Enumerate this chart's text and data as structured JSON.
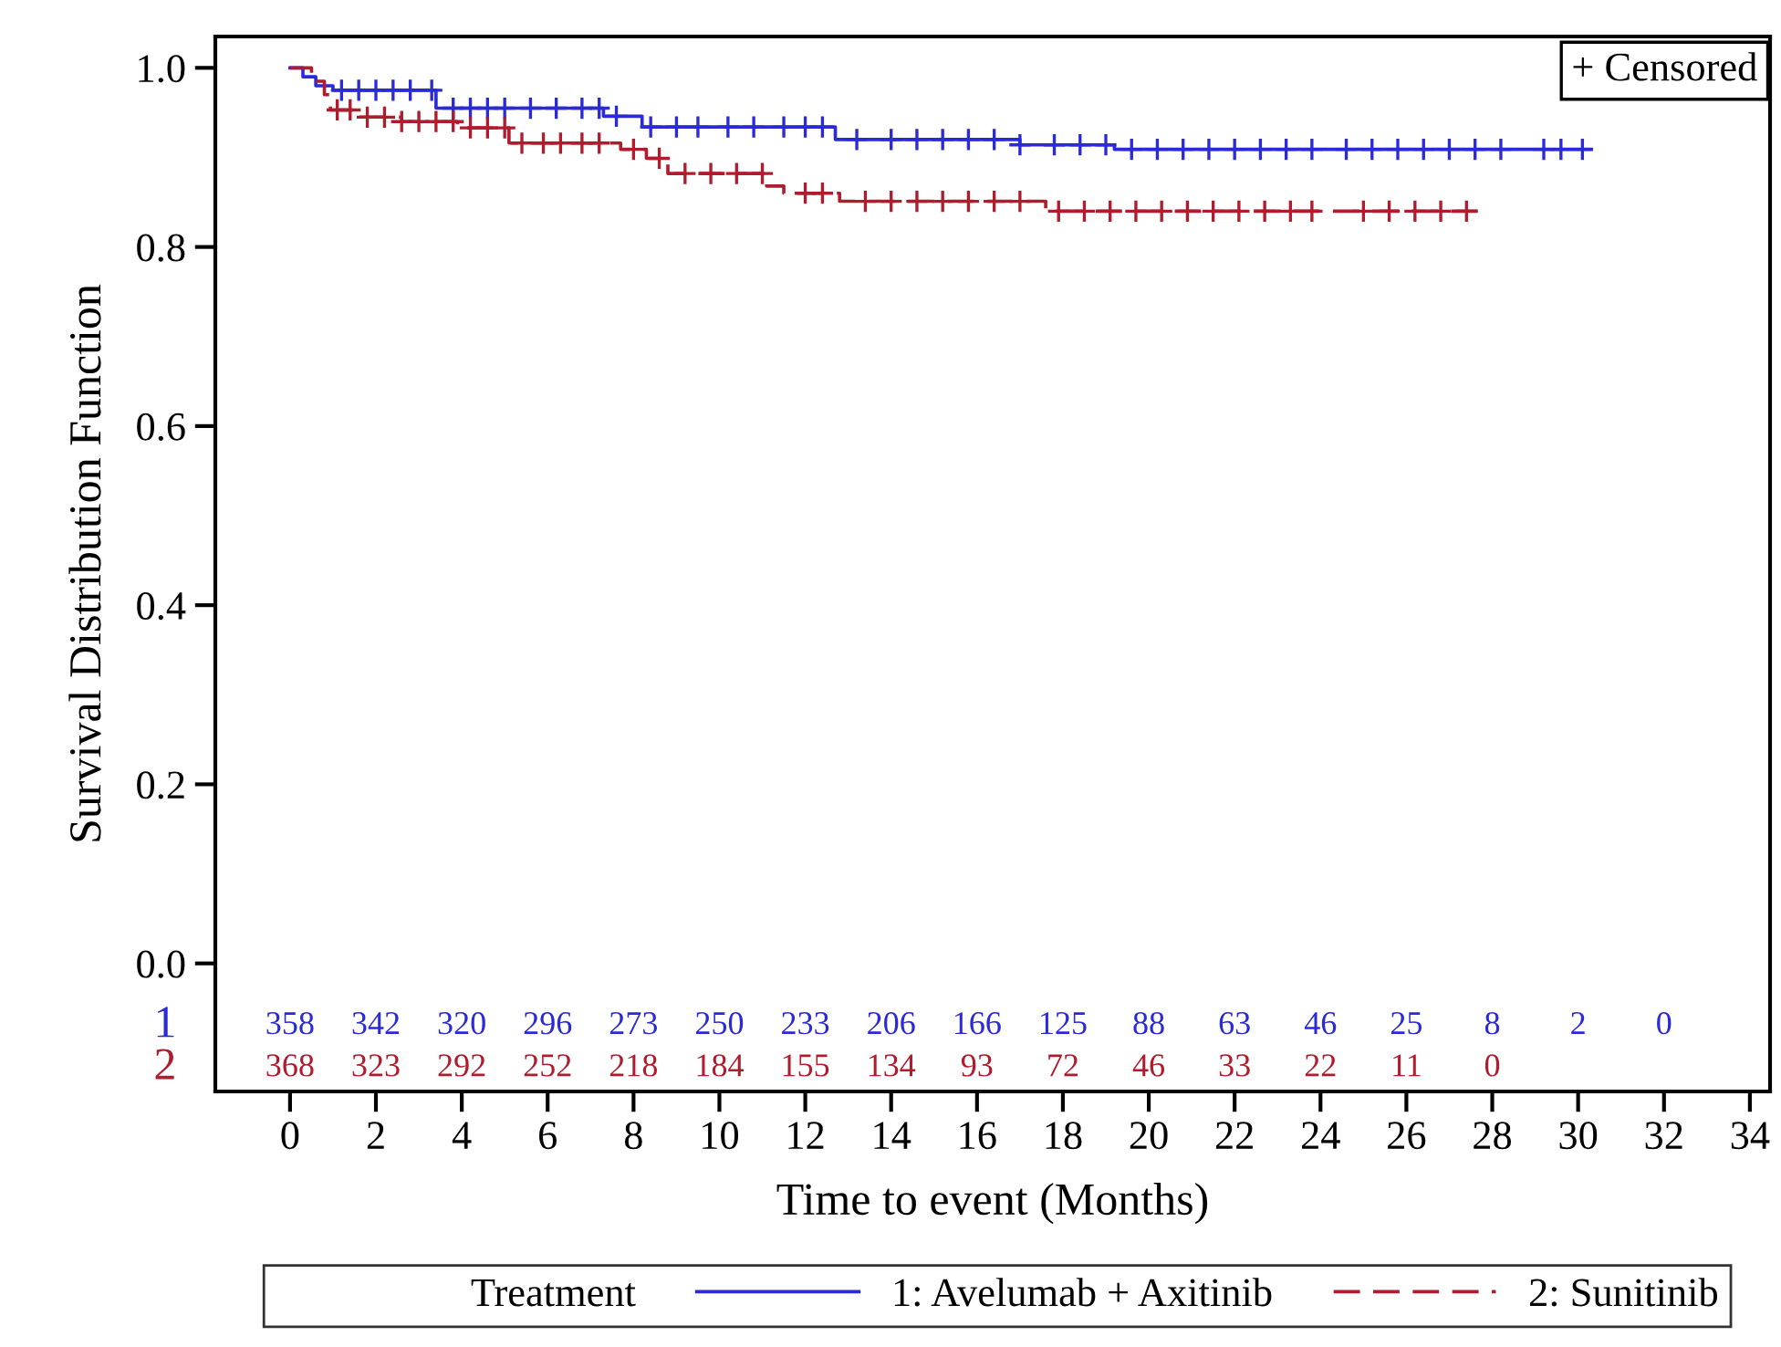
{
  "chart_data": {
    "type": "step",
    "xlabel": "Time to event (Months)",
    "ylabel": "Survival Distribution Function",
    "legend_title": "Treatment",
    "legend": "bottom",
    "grid": false,
    "xlim": [
      -1.74,
      34.47
    ],
    "ylim": [
      -0.143,
      1.035
    ],
    "xticks": [
      0,
      2,
      4,
      6,
      8,
      10,
      12,
      14,
      16,
      18,
      20,
      22,
      24,
      26,
      28,
      30,
      32,
      34
    ],
    "yticks": [
      {
        "value": 0,
        "label": "0.0"
      },
      {
        "value": 0.2,
        "label": "0.2"
      },
      {
        "value": 0.4,
        "label": "0.4"
      },
      {
        "value": 0.6,
        "label": "0.6"
      },
      {
        "value": 0.8,
        "label": "0.8"
      },
      {
        "value": 1,
        "label": "1.0"
      }
    ],
    "series": [
      {
        "name": "1: Avelumab + Axitinib",
        "color": "#2a2ad6",
        "line_style": "solid",
        "x": [
          0,
          0.3,
          0.6,
          1.0,
          3.4,
          7.3,
          8.2,
          12.7,
          17.0,
          19.2,
          30.3
        ],
        "values": [
          1.0,
          0.99,
          0.98,
          0.975,
          0.955,
          0.946,
          0.934,
          0.92,
          0.914,
          0.909,
          0.909
        ]
      },
      {
        "name": "2: Sunitinib",
        "color": "#b01c2e",
        "line_style": "dashed",
        "x": [
          0,
          0.5,
          0.8,
          0.94,
          1.5,
          2.6,
          3.9,
          5.1,
          7.7,
          8.3,
          8.8,
          11.1,
          11.5,
          12.8,
          17.6,
          27.7
        ],
        "values": [
          1.0,
          0.985,
          0.97,
          0.953,
          0.945,
          0.94,
          0.933,
          0.916,
          0.909,
          0.899,
          0.882,
          0.868,
          0.86,
          0.851,
          0.84,
          0.84
        ]
      },
      {
        "type": "scatter",
        "marker": "cross",
        "color": "#2a2ad6",
        "x": [
          1.2,
          1.6,
          2.0,
          2.4,
          2.8,
          3.3,
          3.8,
          4.2,
          4.6,
          5.0,
          5.6,
          6.2,
          6.8,
          7.2,
          7.6,
          8.4,
          9.0,
          9.5,
          10.2,
          10.8,
          11.5,
          12.0,
          12.4,
          13.2,
          14.0,
          14.6,
          15.2,
          15.8,
          16.4,
          17.0,
          17.8,
          18.4,
          19.0,
          19.6,
          20.2,
          20.8,
          21.4,
          22.0,
          22.6,
          23.2,
          23.8,
          24.6,
          25.2,
          25.8,
          26.4,
          27.0,
          27.6,
          28.2,
          29.2,
          29.6,
          30.1
        ],
        "values": [
          0.975,
          0.975,
          0.975,
          0.975,
          0.975,
          0.975,
          0.955,
          0.955,
          0.955,
          0.955,
          0.955,
          0.955,
          0.955,
          0.955,
          0.946,
          0.934,
          0.934,
          0.934,
          0.934,
          0.934,
          0.934,
          0.934,
          0.934,
          0.92,
          0.92,
          0.92,
          0.92,
          0.92,
          0.92,
          0.914,
          0.914,
          0.914,
          0.914,
          0.909,
          0.909,
          0.909,
          0.909,
          0.909,
          0.909,
          0.909,
          0.909,
          0.909,
          0.909,
          0.909,
          0.909,
          0.909,
          0.909,
          0.909,
          0.909,
          0.909,
          0.909
        ]
      },
      {
        "type": "scatter",
        "marker": "cross",
        "color": "#b01c2e",
        "x": [
          1.1,
          1.4,
          1.8,
          2.2,
          2.6,
          3.0,
          3.4,
          3.8,
          4.2,
          4.6,
          5.0,
          5.4,
          5.9,
          6.3,
          6.8,
          7.2,
          8.0,
          8.6,
          9.2,
          9.8,
          10.4,
          11.0,
          12.0,
          12.4,
          13.4,
          14.0,
          14.6,
          15.2,
          15.8,
          16.4,
          17.0,
          17.9,
          18.5,
          19.1,
          19.7,
          20.3,
          20.9,
          21.5,
          22.1,
          22.7,
          23.3,
          23.8,
          25.0,
          25.6,
          26.2,
          26.8,
          27.4
        ],
        "values": [
          0.953,
          0.953,
          0.945,
          0.945,
          0.94,
          0.94,
          0.94,
          0.94,
          0.933,
          0.933,
          0.933,
          0.916,
          0.916,
          0.916,
          0.916,
          0.916,
          0.909,
          0.899,
          0.882,
          0.882,
          0.882,
          0.882,
          0.86,
          0.86,
          0.851,
          0.851,
          0.851,
          0.851,
          0.851,
          0.851,
          0.851,
          0.84,
          0.84,
          0.84,
          0.84,
          0.84,
          0.84,
          0.84,
          0.84,
          0.84,
          0.84,
          0.84,
          0.84,
          0.84,
          0.84,
          0.84,
          0.84
        ]
      }
    ],
    "annotations": [
      "+ Censored",
      "1",
      "358 342 320 296 273 250 233 206 166 125 88 63 46 25 8 2 0",
      "2",
      "368 323 292 252 218 184 155 134 93 72 46 33 22 11 0"
    ]
  }
}
